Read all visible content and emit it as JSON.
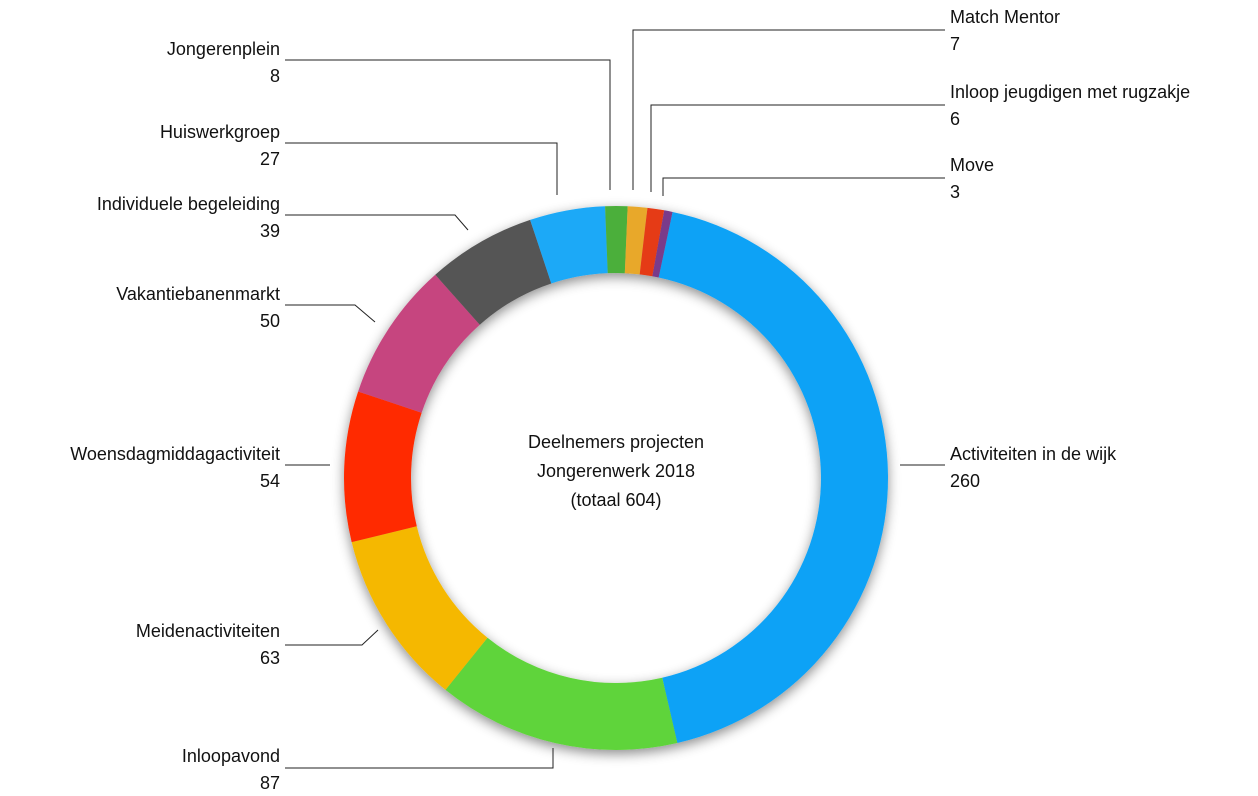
{
  "chart_data": {
    "type": "donut",
    "title_lines": [
      "Deelnemers projecten",
      "Jongerenwerk 2018",
      "(totaal 604)"
    ],
    "categories": [
      "Activiteiten in de wijk",
      "Inloopavond",
      "Meidenactiviteiten",
      "Woensdagmiddagactiviteit",
      "Vakantiebanenmarkt",
      "Individuele begeleiding",
      "Huiswerkgroep",
      "Jongerenplein",
      "Match Mentor",
      "Inloop jeugdigen met rugzakje",
      "Move"
    ],
    "values": [
      260,
      87,
      63,
      54,
      50,
      39,
      27,
      8,
      7,
      6,
      3
    ],
    "colors": [
      "#0aa2f6",
      "#5fd43a",
      "#f5b800",
      "#ff2a00",
      "#c6457f",
      "#555555",
      "#1fa9f7",
      "#4caf3a",
      "#e8a82a",
      "#e53a16",
      "#7a3a8a"
    ]
  }
}
